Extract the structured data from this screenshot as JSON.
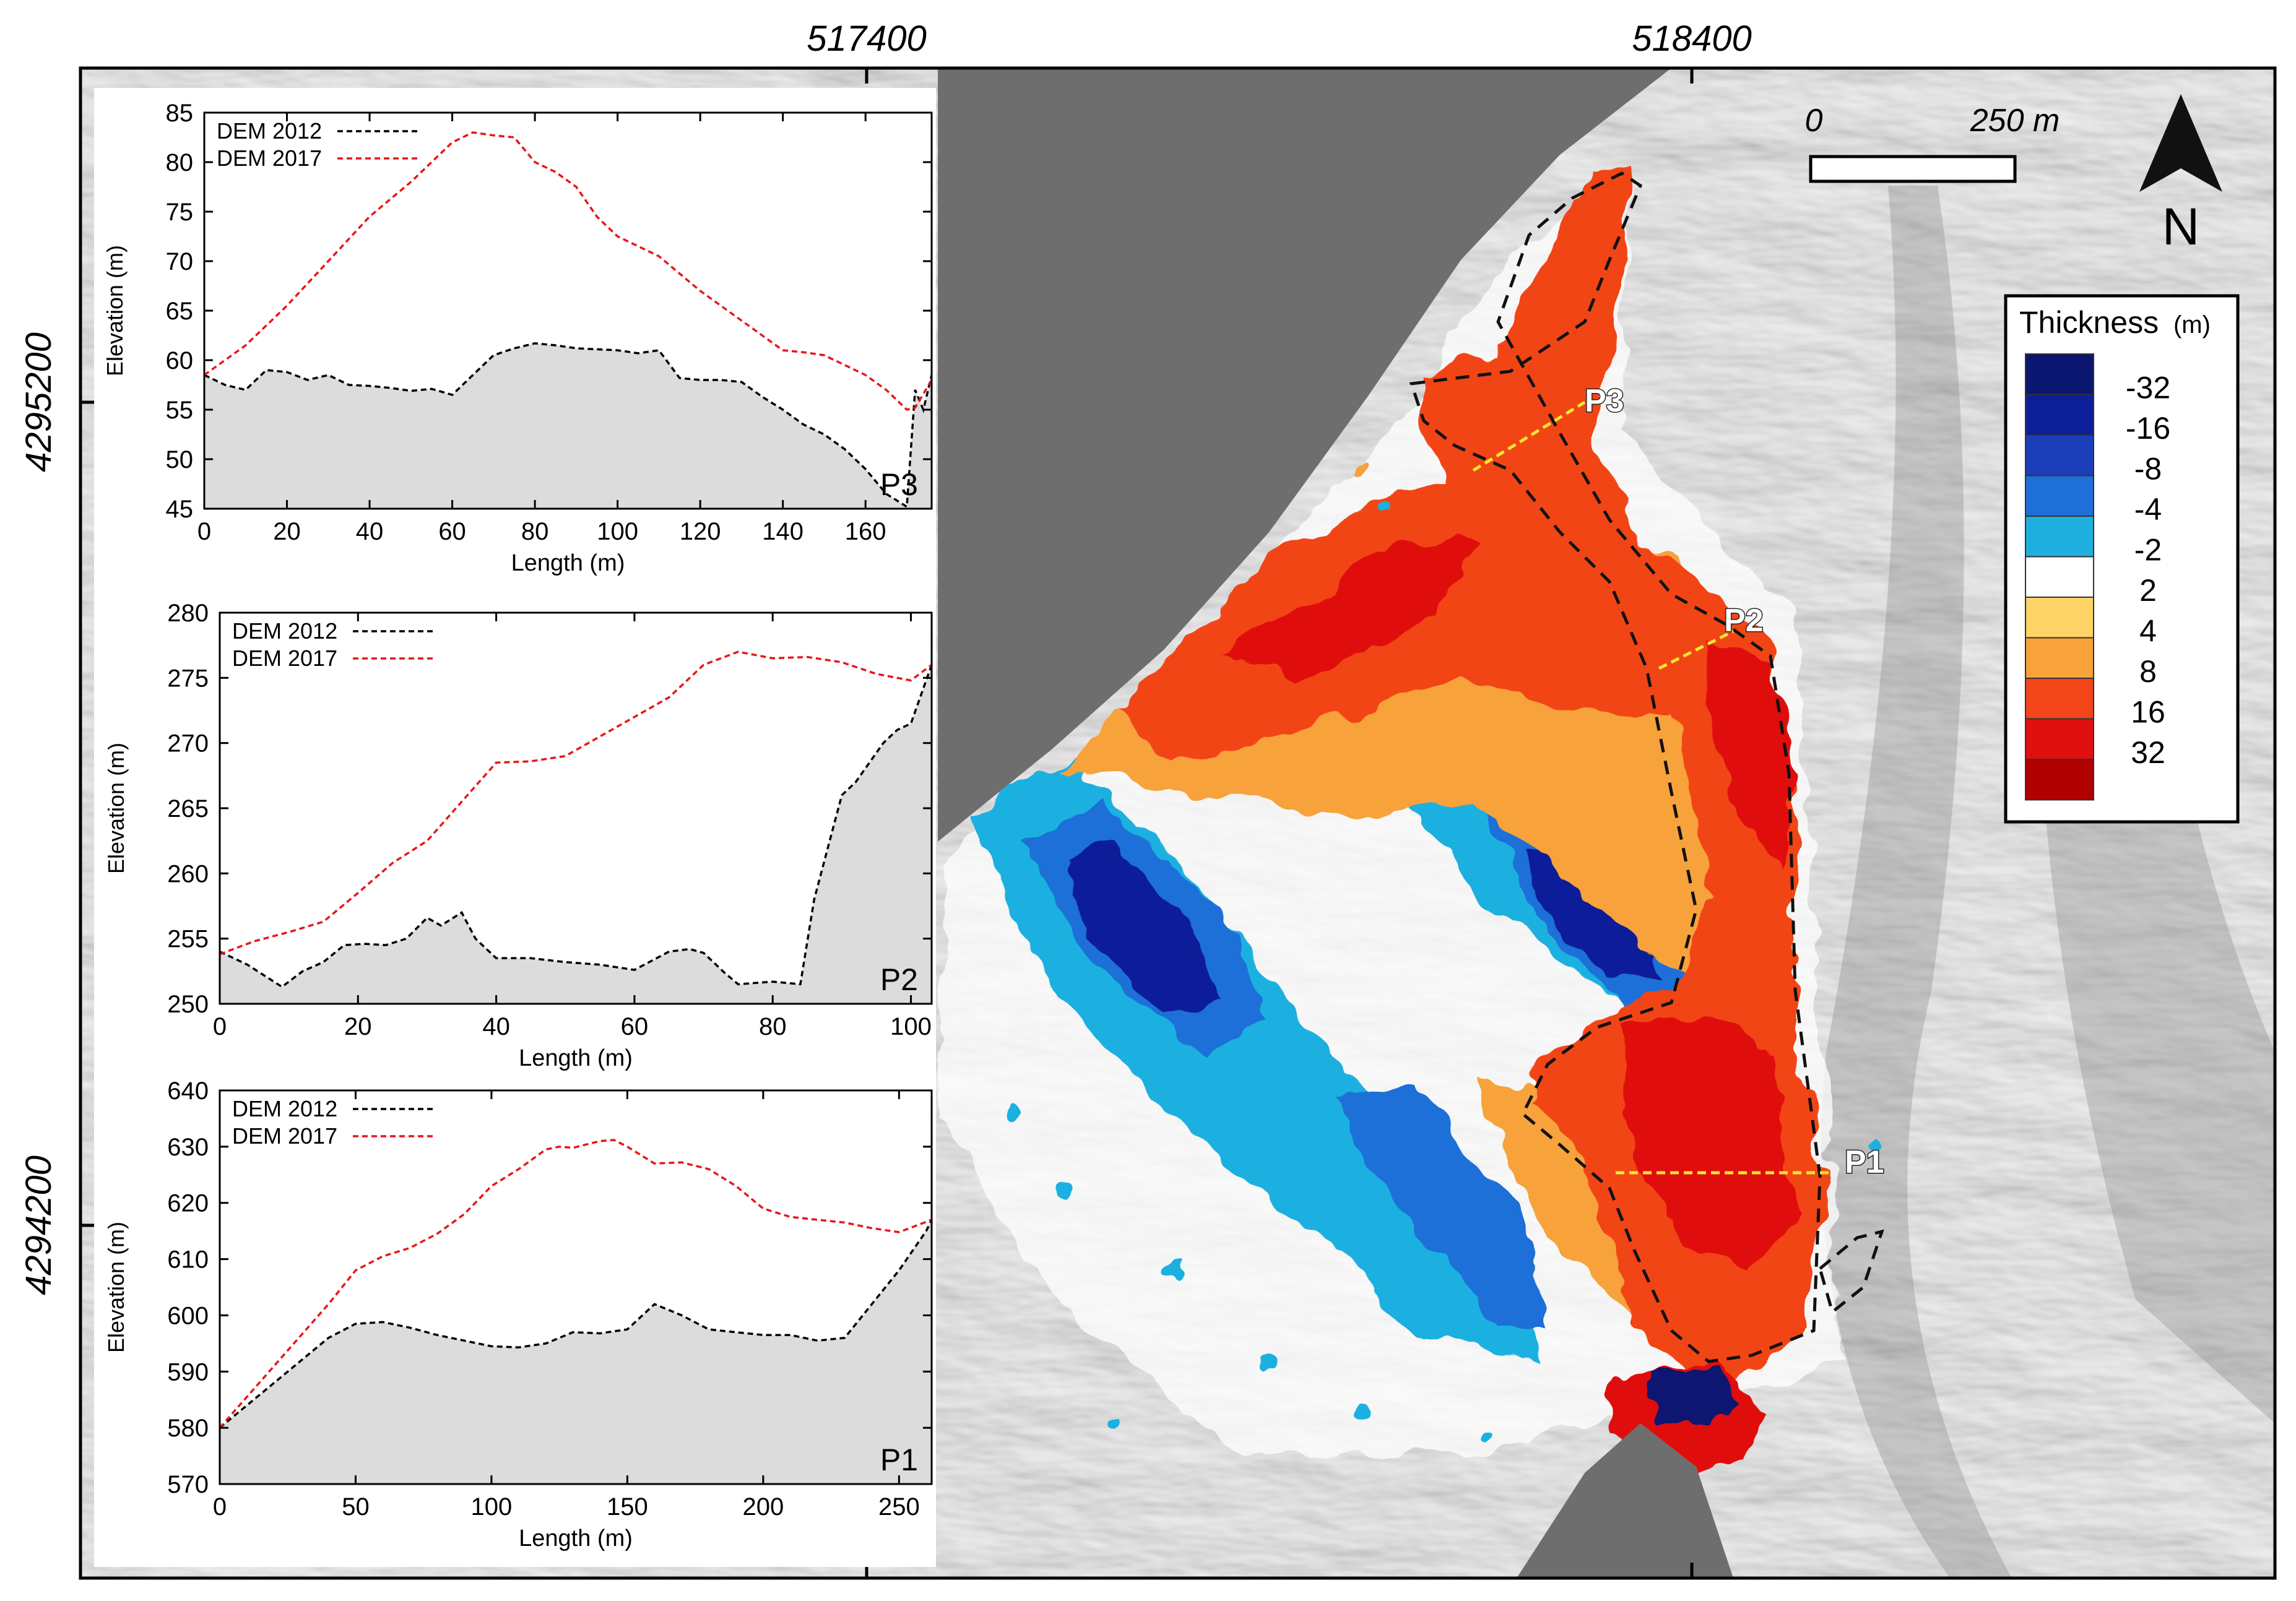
{
  "map": {
    "coords_top": [
      "517400",
      "518400"
    ],
    "coords_left": [
      "4295200",
      "4294200"
    ],
    "hillshade_color": "#e6e6e6",
    "water_color": "#6f6f6f",
    "scalebar": {
      "start_label": "0",
      "end_label": "250 m"
    },
    "north_label": "N",
    "profile_lines": [
      {
        "name": "P3",
        "label": "P3"
      },
      {
        "name": "P2",
        "label": "P2"
      },
      {
        "name": "P1",
        "label": "P1"
      }
    ]
  },
  "legend": {
    "title": "Thickness",
    "unit": "(m)",
    "entries": [
      {
        "label": "-32",
        "color": "#0a1670"
      },
      {
        "label": "-16",
        "color": "#0c1f98"
      },
      {
        "label": "-8",
        "color": "#1b3fb8"
      },
      {
        "label": "-4",
        "color": "#1f6fd8"
      },
      {
        "label": "-2",
        "color": "#1fb0e0"
      },
      {
        "label": "2",
        "color": "#ffffff"
      },
      {
        "label": "4",
        "color": "#fdd466"
      },
      {
        "label": "8",
        "color": "#f7a23a"
      },
      {
        "label": "16",
        "color": "#f24519"
      },
      {
        "label": "32",
        "color": "#e01010"
      },
      {
        "label": "",
        "color": "#b00000"
      }
    ]
  },
  "chart_data": [
    {
      "type": "line",
      "panel": "P3",
      "xlabel": "Length (m)",
      "ylabel": "Elevation (m)",
      "xlim": [
        0,
        176
      ],
      "ylim": [
        45,
        85
      ],
      "xticks": [
        0,
        20,
        40,
        60,
        80,
        100,
        120,
        140,
        160
      ],
      "yticks": [
        45,
        50,
        55,
        60,
        65,
        70,
        75,
        80,
        85
      ],
      "legend": [
        "DEM 2012",
        "DEM 2017"
      ],
      "series": [
        {
          "name": "DEM 2012",
          "color": "#000000",
          "x": [
            0,
            5,
            10,
            15,
            20,
            25,
            30,
            35,
            40,
            45,
            50,
            55,
            60,
            65,
            70,
            75,
            80,
            85,
            90,
            95,
            100,
            105,
            110,
            115,
            120,
            125,
            130,
            135,
            140,
            145,
            150,
            155,
            160,
            165,
            170,
            172,
            174,
            176
          ],
          "y": [
            58.5,
            57.5,
            57,
            59,
            58.8,
            58,
            58.5,
            57.5,
            57.4,
            57.2,
            56.9,
            57.1,
            56.5,
            58.5,
            60.5,
            61.2,
            61.7,
            61.5,
            61.2,
            61.1,
            61,
            60.7,
            61,
            58.2,
            58,
            58,
            57.8,
            56.3,
            55,
            53.5,
            52.5,
            51,
            49,
            46.5,
            45.2,
            57,
            55,
            58.5
          ]
        },
        {
          "name": "DEM 2017",
          "color": "#e8161a",
          "x": [
            0,
            10,
            20,
            30,
            40,
            50,
            55,
            60,
            65,
            70,
            75,
            80,
            85,
            90,
            95,
            100,
            105,
            110,
            120,
            130,
            140,
            145,
            150,
            155,
            160,
            165,
            170,
            172,
            176
          ],
          "y": [
            58.5,
            61.5,
            65.5,
            70,
            74.5,
            78,
            80,
            82,
            83,
            82.7,
            82.5,
            80,
            79,
            77.5,
            74.5,
            72.5,
            71.5,
            70.5,
            67,
            64,
            61,
            60.8,
            60.5,
            59.5,
            58.5,
            57,
            55,
            55.2,
            58
          ]
        }
      ]
    },
    {
      "type": "line",
      "panel": "P2",
      "xlabel": "Length (m)",
      "ylabel": "Elevation (m)",
      "xlim": [
        0,
        103
      ],
      "ylim": [
        250,
        280
      ],
      "xticks": [
        0,
        20,
        40,
        60,
        80,
        100
      ],
      "yticks": [
        250,
        255,
        260,
        265,
        270,
        275,
        280
      ],
      "legend": [
        "DEM 2012",
        "DEM 2017"
      ],
      "series": [
        {
          "name": "DEM 2012",
          "color": "#000000",
          "x": [
            0,
            4,
            9,
            12,
            15,
            18,
            21,
            24,
            27,
            30,
            32,
            35,
            37,
            40,
            45,
            50,
            55,
            60,
            65,
            68,
            70,
            73,
            75,
            80,
            84,
            86,
            88,
            90,
            92,
            94,
            96,
            98,
            100,
            103
          ],
          "y": [
            254,
            253,
            251.3,
            252.5,
            253.2,
            254.5,
            254.6,
            254.5,
            255,
            256.6,
            256,
            257,
            255,
            253.5,
            253.5,
            253.2,
            253,
            252.6,
            254,
            254.2,
            253.9,
            252.4,
            251.5,
            251.7,
            251.5,
            258,
            262,
            266,
            267,
            268.5,
            270,
            271,
            271.5,
            276
          ]
        },
        {
          "name": "DEM 2017",
          "color": "#e8161a",
          "x": [
            0,
            5,
            10,
            15,
            20,
            25,
            30,
            35,
            40,
            45,
            50,
            55,
            60,
            65,
            70,
            75,
            80,
            85,
            90,
            95,
            100,
            103
          ],
          "y": [
            253.8,
            254.8,
            255.5,
            256.3,
            258.5,
            260.8,
            262.5,
            265.5,
            268.5,
            268.6,
            269,
            270.5,
            272,
            273.5,
            276,
            277,
            276.5,
            276.6,
            276.2,
            275.3,
            274.8,
            276
          ]
        }
      ]
    },
    {
      "type": "line",
      "panel": "P1",
      "xlabel": "Length (m)",
      "ylabel": "Elevation (m)",
      "xlim": [
        0,
        262
      ],
      "ylim": [
        570,
        640
      ],
      "xticks": [
        0,
        50,
        100,
        150,
        200,
        250
      ],
      "yticks": [
        570,
        580,
        590,
        600,
        610,
        620,
        630,
        640
      ],
      "legend": [
        "DEM 2012",
        "DEM 2017"
      ],
      "series": [
        {
          "name": "DEM 2012",
          "color": "#000000",
          "x": [
            0,
            20,
            40,
            50,
            60,
            70,
            80,
            90,
            100,
            110,
            120,
            130,
            140,
            150,
            160,
            170,
            180,
            190,
            200,
            210,
            220,
            230,
            240,
            250,
            260,
            262
          ],
          "y": [
            580,
            588,
            596,
            598.5,
            598.8,
            597.8,
            596.5,
            595.5,
            594.5,
            594.3,
            595,
            597,
            596.8,
            597.5,
            602,
            600,
            597.5,
            597,
            596.5,
            596.5,
            595.5,
            596,
            602,
            608,
            615,
            617
          ]
        },
        {
          "name": "DEM 2017",
          "color": "#e8161a",
          "x": [
            0,
            20,
            40,
            50,
            60,
            70,
            80,
            90,
            100,
            110,
            120,
            125,
            130,
            140,
            145,
            150,
            160,
            170,
            180,
            190,
            200,
            210,
            220,
            230,
            240,
            250,
            262
          ],
          "y": [
            580,
            591,
            602,
            608,
            610.5,
            612,
            614.5,
            618,
            623,
            626,
            629.5,
            630,
            629.8,
            631,
            631.2,
            630,
            627,
            627.2,
            626,
            623,
            619,
            617.5,
            617,
            616.5,
            615.5,
            614.8,
            617
          ]
        }
      ]
    }
  ]
}
